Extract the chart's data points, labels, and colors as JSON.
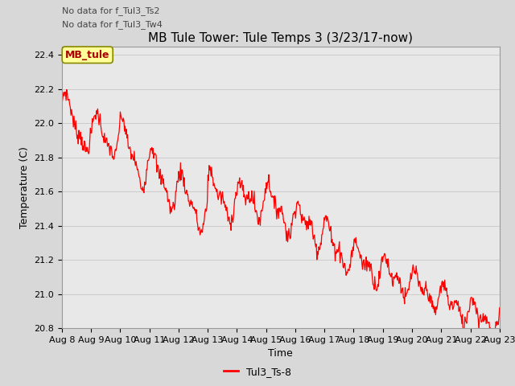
{
  "title": "MB Tule Tower: Tule Temps 3 (3/23/17-now)",
  "xlabel": "Time",
  "ylabel": "Temperature (C)",
  "ylim": [
    20.8,
    22.45
  ],
  "yticks": [
    20.8,
    21.0,
    21.2,
    21.4,
    21.6,
    21.8,
    22.0,
    22.2,
    22.4
  ],
  "xtick_labels": [
    "Aug 8",
    "Aug 9",
    "Aug 10",
    "Aug 11",
    "Aug 12",
    "Aug 13",
    "Aug 14",
    "Aug 15",
    "Aug 16",
    "Aug 17",
    "Aug 18",
    "Aug 19",
    "Aug 20",
    "Aug 21",
    "Aug 22",
    "Aug 23"
  ],
  "line_color": "#ff0000",
  "line_label": "Tul3_Ts-8",
  "legend_box_label": "MB_tule",
  "legend_box_color": "#ffff99",
  "legend_box_edge": "#888800",
  "no_data_text1": "No data for f_Tul3_Ts2",
  "no_data_text2": "No data for f_Tul3_Tw4",
  "background_color": "#d8d8d8",
  "plot_bg_color": "#e8e8e8",
  "title_fontsize": 11,
  "axis_label_fontsize": 9,
  "tick_fontsize": 8,
  "nodata_fontsize": 8
}
